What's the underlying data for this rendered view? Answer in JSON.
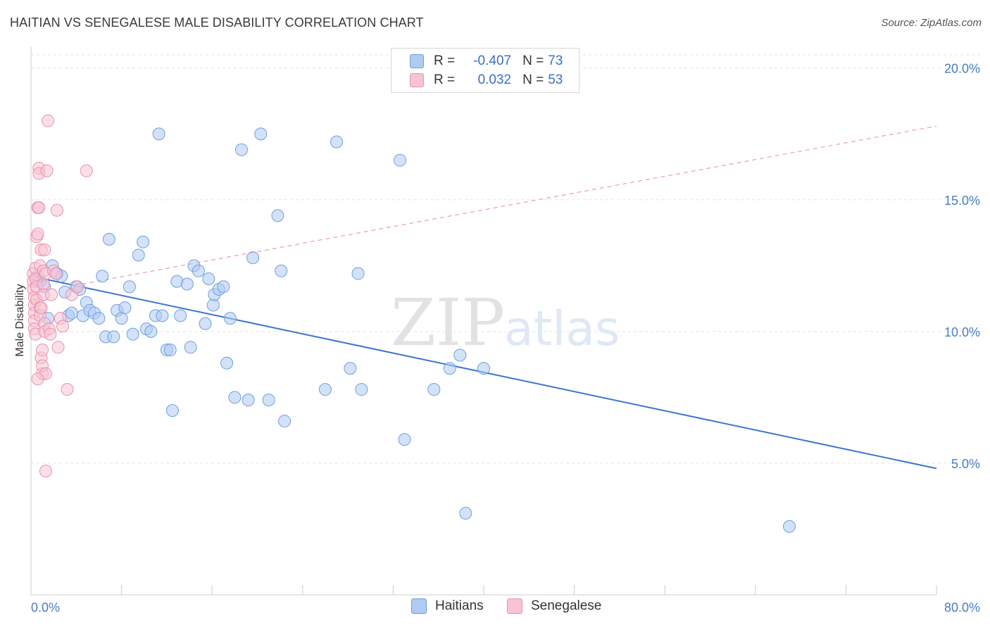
{
  "header": {
    "title": "HAITIAN VS SENEGALESE MALE DISABILITY CORRELATION CHART",
    "source": "Source: ZipAtlas.com"
  },
  "legend": {
    "rows": [
      {
        "r_label": "R =",
        "r_value": "-0.407",
        "n_label": "N =",
        "n_value": "73",
        "color": "#aecbf2"
      },
      {
        "r_label": "R =",
        "r_value": "0.032",
        "n_label": "N =",
        "n_value": "53",
        "color": "#f8c4d4"
      }
    ]
  },
  "bottom_legend": [
    {
      "label": "Haitians",
      "color": "#aecbf2"
    },
    {
      "label": "Senegalese",
      "color": "#f8c4d4"
    }
  ],
  "colors": {
    "haitian_fill": "#aecbf2",
    "haitian_stroke": "#6f9fdf",
    "haitian_line": "#3a76d0",
    "senegalese_fill": "#f8c4d4",
    "senegalese_stroke": "#ec8faa",
    "senegalese_line": "#e48aa6",
    "grid": "#e3e3e3",
    "tick_text": "#4a7cc7"
  },
  "watermark": {
    "zip": "ZIP",
    "atlas": "atlas"
  },
  "chart_data": {
    "type": "scatter",
    "title": "HAITIAN VS SENEGALESE MALE DISABILITY CORRELATION CHART",
    "xlabel": "",
    "ylabel": "Male Disability",
    "xlim": [
      0,
      80
    ],
    "ylim": [
      0,
      20.5
    ],
    "x_tick_labels": [
      "0.0%",
      "80.0%"
    ],
    "y_ticks": [
      5,
      10,
      15,
      20
    ],
    "y_tick_labels": [
      "5.0%",
      "10.0%",
      "15.0%",
      "20.0%"
    ],
    "grid": true,
    "legend_position": "top-center",
    "series": [
      {
        "name": "Haitians",
        "r": -0.407,
        "n": 73,
        "trend": {
          "x": [
            0,
            80
          ],
          "y": [
            12.1,
            4.8
          ],
          "style": "solid"
        },
        "points": [
          [
            0.6,
            12.1
          ],
          [
            0.8,
            11.9
          ],
          [
            1.2,
            11.7
          ],
          [
            1.5,
            10.5
          ],
          [
            1.9,
            12.5
          ],
          [
            2.3,
            12.2
          ],
          [
            2.7,
            12.1
          ],
          [
            3.0,
            11.5
          ],
          [
            3.3,
            10.6
          ],
          [
            3.6,
            10.7
          ],
          [
            4.0,
            11.7
          ],
          [
            4.3,
            11.6
          ],
          [
            4.6,
            10.6
          ],
          [
            4.9,
            11.1
          ],
          [
            5.2,
            10.8
          ],
          [
            5.6,
            10.7
          ],
          [
            6.0,
            10.5
          ],
          [
            6.3,
            12.1
          ],
          [
            6.6,
            9.8
          ],
          [
            6.9,
            13.5
          ],
          [
            7.3,
            9.8
          ],
          [
            7.6,
            10.8
          ],
          [
            8.0,
            10.5
          ],
          [
            8.3,
            10.9
          ],
          [
            8.7,
            11.7
          ],
          [
            9.0,
            9.9
          ],
          [
            9.5,
            12.9
          ],
          [
            9.9,
            13.4
          ],
          [
            10.2,
            10.1
          ],
          [
            10.6,
            10.0
          ],
          [
            11.0,
            10.6
          ],
          [
            11.3,
            17.5
          ],
          [
            11.6,
            10.6
          ],
          [
            12.0,
            9.3
          ],
          [
            12.3,
            9.3
          ],
          [
            12.5,
            7.0
          ],
          [
            12.9,
            11.9
          ],
          [
            13.2,
            10.6
          ],
          [
            13.8,
            11.8
          ],
          [
            14.1,
            9.4
          ],
          [
            14.4,
            12.5
          ],
          [
            14.8,
            12.3
          ],
          [
            15.4,
            10.3
          ],
          [
            15.7,
            12.0
          ],
          [
            16.1,
            11.0
          ],
          [
            16.2,
            11.4
          ],
          [
            16.6,
            11.6
          ],
          [
            17.0,
            11.7
          ],
          [
            17.3,
            8.8
          ],
          [
            17.6,
            10.5
          ],
          [
            18.0,
            7.5
          ],
          [
            18.6,
            16.9
          ],
          [
            19.2,
            7.4
          ],
          [
            19.6,
            12.8
          ],
          [
            20.3,
            17.5
          ],
          [
            21.0,
            7.4
          ],
          [
            21.8,
            14.4
          ],
          [
            22.1,
            12.3
          ],
          [
            22.4,
            6.6
          ],
          [
            26.0,
            7.8
          ],
          [
            27.0,
            17.2
          ],
          [
            28.2,
            8.6
          ],
          [
            28.9,
            12.2
          ],
          [
            29.2,
            7.8
          ],
          [
            32.6,
            16.5
          ],
          [
            33.0,
            5.9
          ],
          [
            35.6,
            7.8
          ],
          [
            37.0,
            8.6
          ],
          [
            37.9,
            9.1
          ],
          [
            38.4,
            3.1
          ],
          [
            40.0,
            8.6
          ],
          [
            67.0,
            2.6
          ],
          [
            0.5,
            11.9
          ]
        ]
      },
      {
        "name": "Senegalese",
        "r": 0.032,
        "n": 53,
        "trend": {
          "x": [
            4.5,
            80
          ],
          "y": [
            11.8,
            17.8
          ],
          "style": "dashed"
        },
        "points": [
          [
            0.2,
            12.2
          ],
          [
            0.2,
            11.9
          ],
          [
            0.2,
            11.6
          ],
          [
            0.3,
            11.3
          ],
          [
            0.3,
            11.0
          ],
          [
            0.3,
            10.7
          ],
          [
            0.3,
            10.4
          ],
          [
            0.3,
            10.1
          ],
          [
            0.4,
            9.9
          ],
          [
            0.4,
            12.4
          ],
          [
            0.4,
            12.0
          ],
          [
            0.5,
            11.7
          ],
          [
            0.5,
            11.2
          ],
          [
            0.5,
            13.6
          ],
          [
            0.6,
            13.7
          ],
          [
            0.6,
            14.7
          ],
          [
            0.7,
            14.7
          ],
          [
            0.7,
            16.2
          ],
          [
            0.7,
            16.0
          ],
          [
            0.8,
            12.5
          ],
          [
            0.8,
            10.9
          ],
          [
            0.8,
            10.6
          ],
          [
            0.9,
            13.1
          ],
          [
            0.9,
            9.0
          ],
          [
            1.0,
            8.4
          ],
          [
            1.0,
            8.7
          ],
          [
            1.0,
            9.3
          ],
          [
            1.1,
            12.3
          ],
          [
            1.1,
            11.8
          ],
          [
            1.1,
            11.4
          ],
          [
            1.2,
            10.3
          ],
          [
            1.2,
            10.0
          ],
          [
            1.3,
            12.2
          ],
          [
            1.3,
            8.4
          ],
          [
            1.3,
            4.7
          ],
          [
            1.4,
            16.1
          ],
          [
            1.5,
            18.0
          ],
          [
            1.6,
            10.1
          ],
          [
            1.7,
            9.9
          ],
          [
            1.8,
            11.4
          ],
          [
            2.0,
            12.3
          ],
          [
            2.2,
            12.2
          ],
          [
            2.3,
            14.6
          ],
          [
            2.4,
            9.4
          ],
          [
            2.6,
            10.5
          ],
          [
            2.8,
            10.2
          ],
          [
            3.2,
            7.8
          ],
          [
            3.6,
            11.4
          ],
          [
            4.1,
            11.7
          ],
          [
            4.9,
            16.1
          ],
          [
            0.9,
            10.9
          ],
          [
            0.6,
            8.2
          ],
          [
            1.2,
            13.1
          ]
        ]
      }
    ]
  }
}
